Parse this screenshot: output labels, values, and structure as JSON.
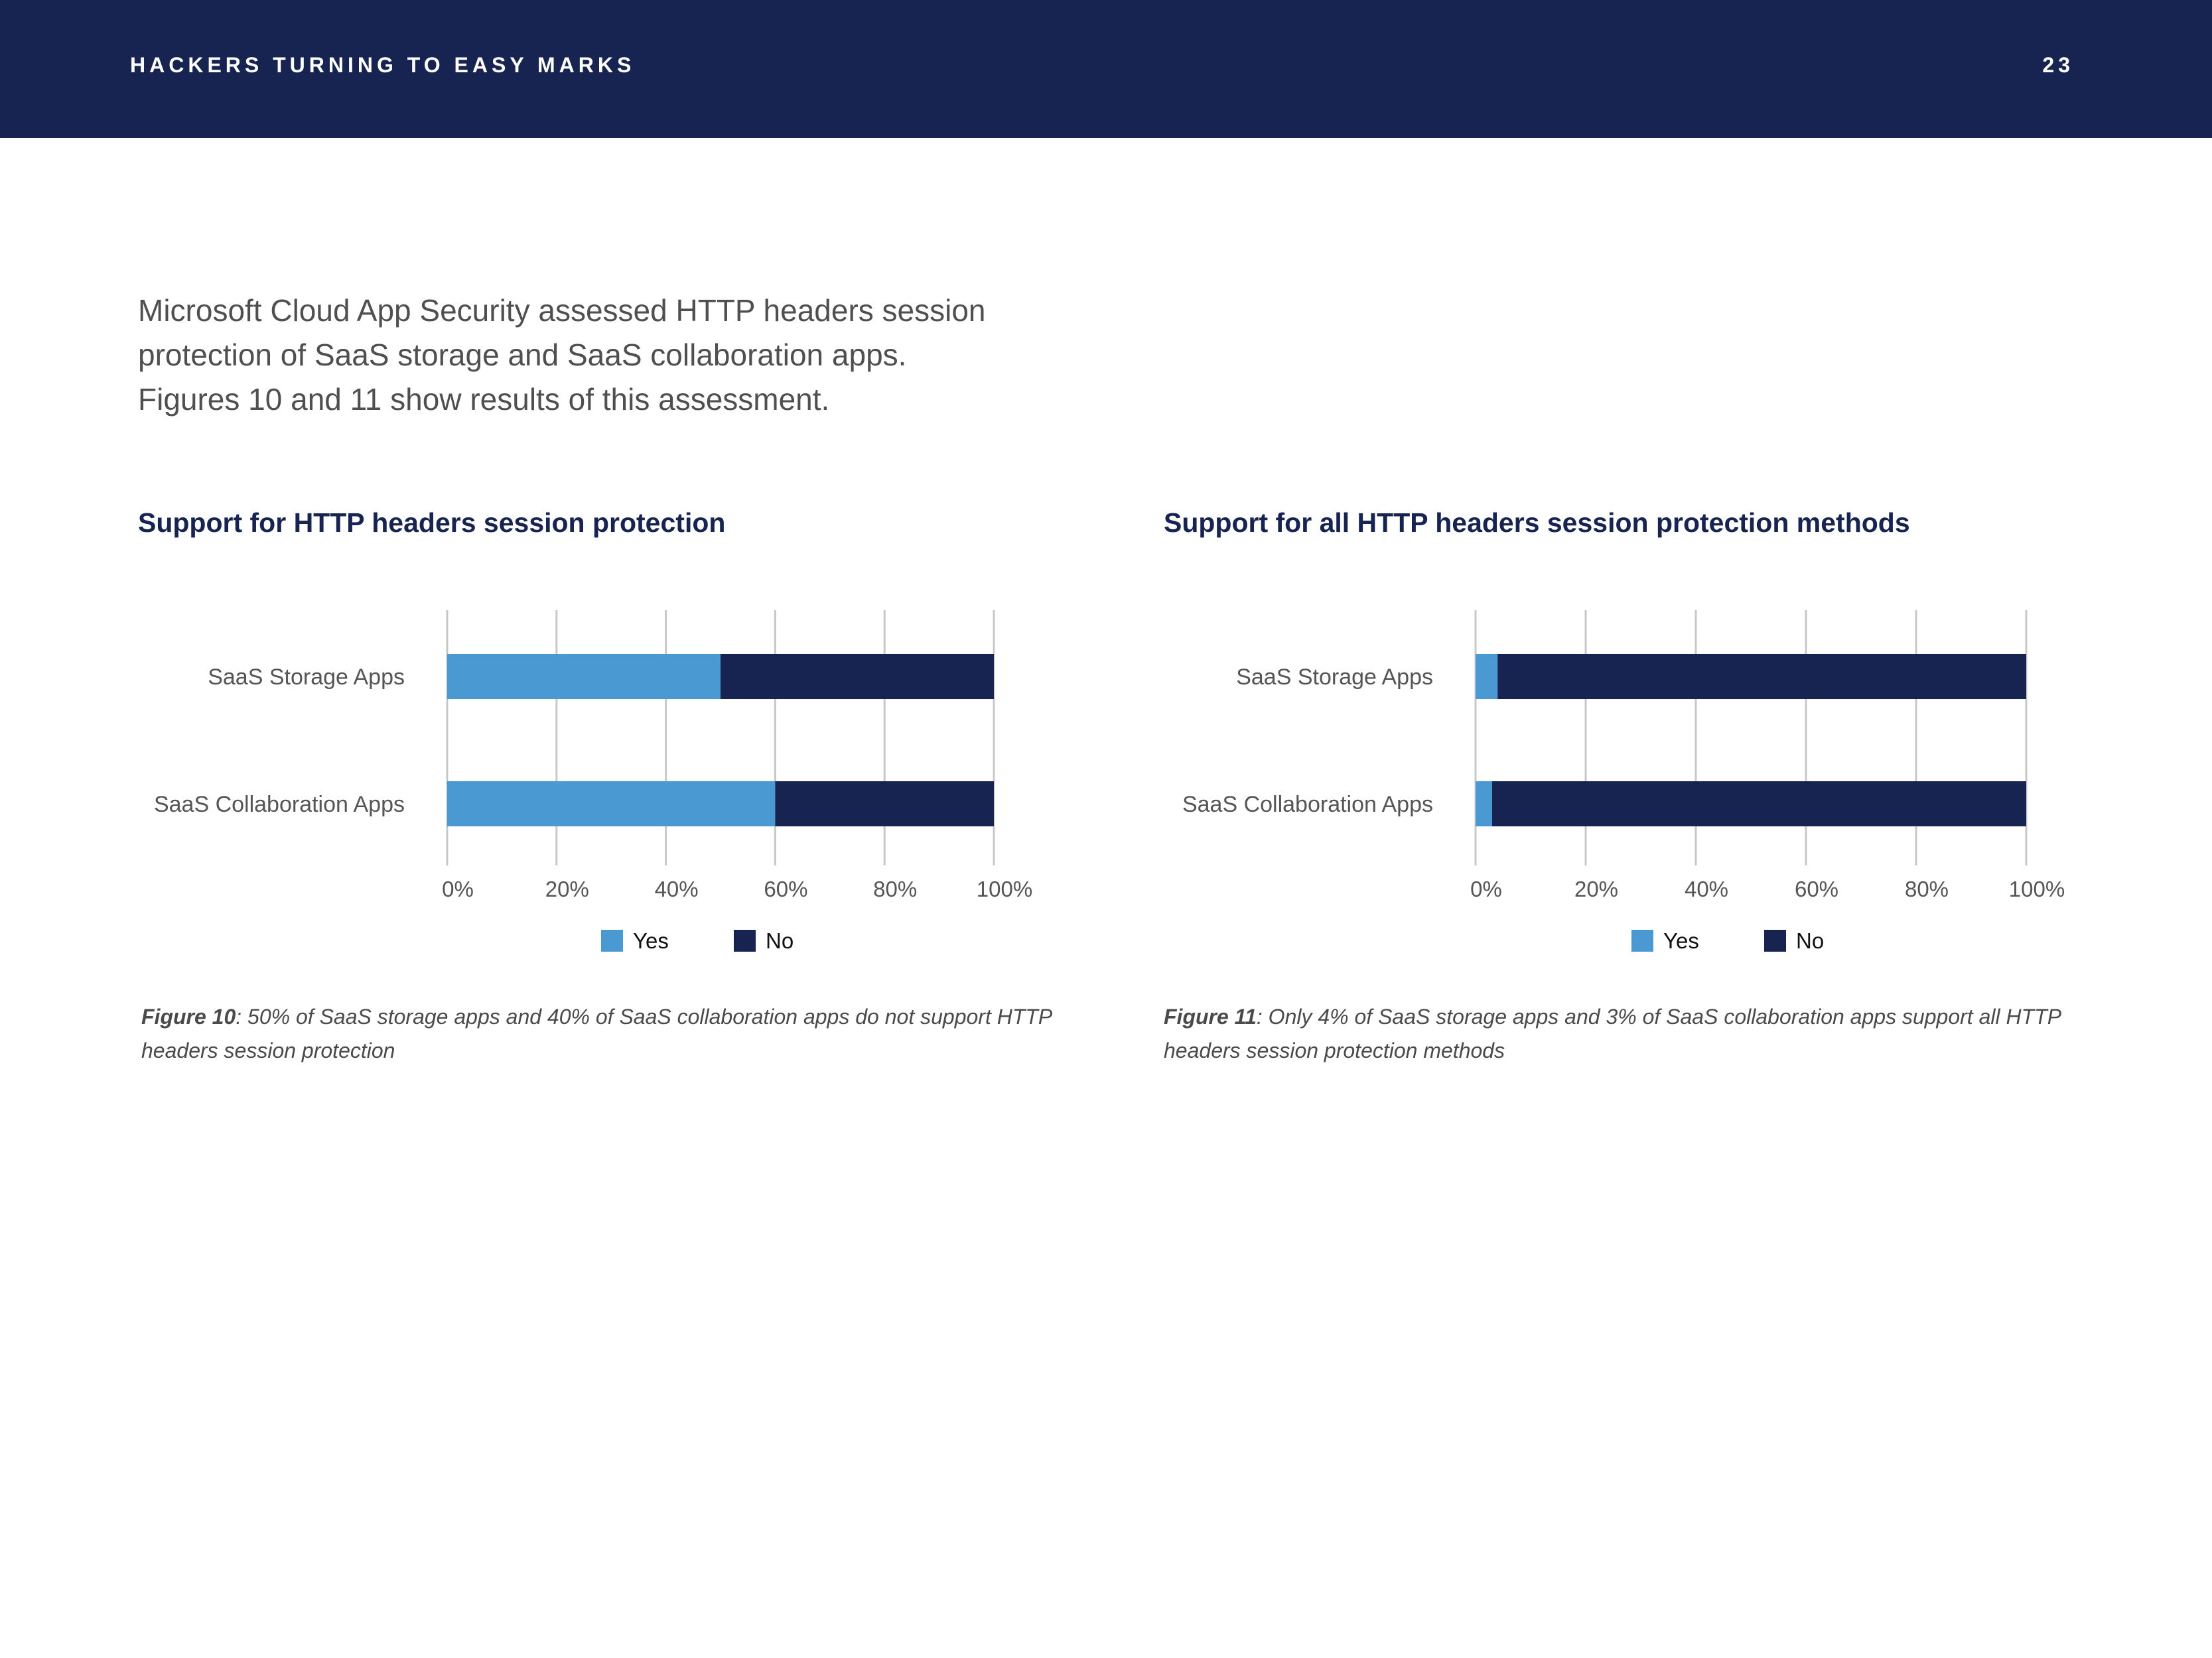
{
  "header": {
    "title": "HACKERS TURNING TO EASY MARKS",
    "page_number": "23"
  },
  "intro": {
    "lines": [
      "Microsoft Cloud App Security assessed HTTP headers session",
      "protection of SaaS storage and SaaS collaboration apps.",
      "Figures 10 and 11 show results of this assessment."
    ]
  },
  "colors": {
    "yes": "#4a99d3",
    "no": "#172350",
    "grid": "#c8c8c8",
    "header_bg": "#172350"
  },
  "charts": [
    {
      "title": "Support for HTTP headers session protection",
      "caption_label": "Figure 10",
      "caption_text": ": 50% of SaaS storage apps and 40% of SaaS collaboration apps do not support HTTP headers session protection"
    },
    {
      "title": "Support for all HTTP headers session protection methods",
      "caption_label": "Figure 11",
      "caption_text": ": Only 4% of SaaS storage apps and 3% of SaaS collaboration apps support all HTTP headers session protection methods"
    }
  ],
  "chart_data": [
    {
      "type": "bar",
      "orientation": "horizontal",
      "stacked": true,
      "title": "Support for HTTP headers session protection",
      "categories": [
        "SaaS Storage Apps",
        "SaaS Collaboration Apps"
      ],
      "series": [
        {
          "name": "Yes",
          "values": [
            50,
            60
          ]
        },
        {
          "name": "No",
          "values": [
            50,
            40
          ]
        }
      ],
      "xticks": [
        "0%",
        "20%",
        "40%",
        "60%",
        "80%",
        "100%"
      ],
      "xlim": [
        0,
        100
      ],
      "grid": true,
      "legend": "bottom"
    },
    {
      "type": "bar",
      "orientation": "horizontal",
      "stacked": true,
      "title": "Support for all HTTP headers session protection methods",
      "categories": [
        "SaaS Storage Apps",
        "SaaS Collaboration Apps"
      ],
      "series": [
        {
          "name": "Yes",
          "values": [
            4,
            3
          ]
        },
        {
          "name": "No",
          "values": [
            96,
            97
          ]
        }
      ],
      "xticks": [
        "0%",
        "20%",
        "40%",
        "60%",
        "80%",
        "100%"
      ],
      "xlim": [
        0,
        100
      ],
      "grid": true,
      "legend": "bottom"
    }
  ]
}
